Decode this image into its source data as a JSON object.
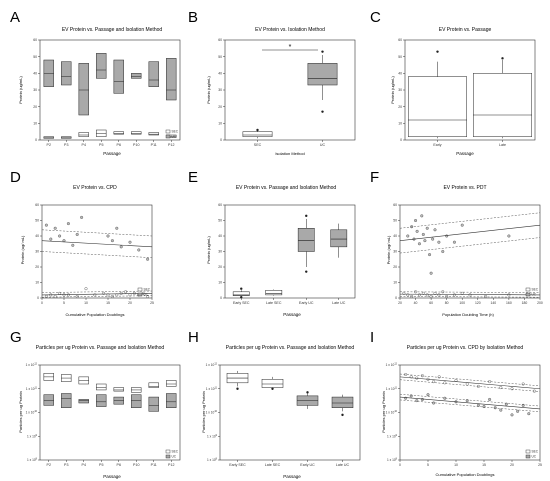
{
  "panels": {
    "A": {
      "letter": "A",
      "title": "EV Protein vs. Passage and Isolation Method",
      "xlabel": "Passage",
      "ylabel": "Protein (ug/mL)"
    },
    "B": {
      "letter": "B",
      "title": "EV Protein vs. Isolation Method",
      "xlabel": "Isolation Method",
      "ylabel": "Protein (ug/mL)",
      "sig": "*"
    },
    "C": {
      "letter": "C",
      "title": "EV Protein vs. Passage",
      "xlabel": "Passage",
      "ylabel": "Protein (ug/mL)"
    },
    "D": {
      "letter": "D",
      "title": "EV Protein vs. CPD",
      "xlabel": "Cumulative Population Doublings",
      "ylabel": "Protein (ug/ mL)"
    },
    "E": {
      "letter": "E",
      "title": "EV Protein vs. Passage and Isolation Method",
      "xlabel": "Passage",
      "ylabel": "Protein (ug/mL)"
    },
    "F": {
      "letter": "F",
      "title": "EV Protein vs. PDT",
      "xlabel": "Population Doubling Time (h)",
      "ylabel": "Protein (ug/ mL)"
    },
    "G": {
      "letter": "G",
      "title": "Particles per ug Protein vs. Passage and Isolation Method",
      "xlabel": "Passage",
      "ylabel": "Particles per ug Protein"
    },
    "H": {
      "letter": "H",
      "title": "Particles per ug Protein vs. Passage and Isolation Method",
      "xlabel": "Passage",
      "ylabel": "Particles per ug Protein"
    },
    "I": {
      "letter": "I",
      "title": "Particles per ug Protein vs. CPD by Isolation Method",
      "xlabel": "Cumulative Population Doublings",
      "ylabel": "Particles per ug Protein"
    }
  },
  "colors": {
    "sec_fill": "#ffffff",
    "uc_fill": "#a9a9a9",
    "stroke": "#222222",
    "axis": "#333333",
    "grid": "#cccccc"
  },
  "chart_data": [
    {
      "panel": "A",
      "type": "bar",
      "categories": [
        "P2",
        "P3",
        "P4",
        "P5",
        "P6",
        "P10",
        "P11",
        "P12"
      ],
      "ylim": [
        0,
        60
      ],
      "yticks": [
        0,
        10,
        20,
        30,
        40,
        50,
        60
      ],
      "legend": [
        "SEC",
        "UC"
      ],
      "legend_position": "bottom-right",
      "series": [
        {
          "name": "SEC",
          "low": [
            1.0,
            1.0,
            2.0,
            2.0,
            3.5,
            3.5,
            3.0,
            1.5
          ],
          "median": [
            1.5,
            1.5,
            3.0,
            4.0,
            4.0,
            4.0,
            3.5,
            2.0
          ],
          "high": [
            2.0,
            2.0,
            4.5,
            6.0,
            5.0,
            5.0,
            4.5,
            3.0
          ]
        },
        {
          "name": "UC",
          "low": [
            32,
            33,
            15,
            37,
            28,
            37,
            32,
            24
          ],
          "median": [
            40,
            38,
            30,
            42,
            35,
            38,
            36,
            30
          ],
          "high": [
            48,
            47,
            46,
            52,
            48,
            40,
            47,
            49
          ]
        }
      ]
    },
    {
      "panel": "B",
      "type": "box",
      "categories": [
        "SEC",
        "UC"
      ],
      "ylim": [
        0,
        60
      ],
      "yticks": [
        0,
        10,
        20,
        30,
        40,
        50,
        60
      ],
      "boxes": [
        {
          "name": "SEC",
          "min": 1,
          "q1": 2,
          "median": 3,
          "q3": 5,
          "max": 6,
          "outliers": [
            6
          ]
        },
        {
          "name": "UC",
          "min": 24,
          "q1": 33,
          "median": 37,
          "q3": 46,
          "max": 51,
          "outliers": [
            53,
            17
          ]
        }
      ]
    },
    {
      "panel": "C",
      "type": "box",
      "categories": [
        "Early",
        "Late"
      ],
      "ylim": [
        0,
        60
      ],
      "yticks": [
        0,
        10,
        20,
        30,
        40,
        50,
        60
      ],
      "boxes": [
        {
          "name": "Early",
          "min": 1,
          "q1": 2,
          "median": 12,
          "q3": 38,
          "max": 47,
          "outliers": [
            53
          ]
        },
        {
          "name": "Late",
          "min": 1,
          "q1": 2,
          "median": 15,
          "q3": 40,
          "max": 48,
          "outliers": [
            49
          ]
        }
      ]
    },
    {
      "panel": "D",
      "type": "scatter",
      "xlim": [
        0,
        25
      ],
      "xticks": [
        0,
        5,
        10,
        15,
        20,
        25
      ],
      "ylim": [
        0,
        60
      ],
      "yticks": [
        0,
        10,
        20,
        30,
        40,
        50,
        60
      ],
      "legend": [
        "SEC",
        "UC"
      ],
      "legend_position": "bottom-right",
      "series": [
        {
          "name": "SEC",
          "x": [
            1,
            2,
            3,
            4,
            5,
            6,
            8,
            10,
            12,
            14,
            15,
            16,
            17,
            18,
            19,
            20,
            21,
            22,
            23,
            24
          ],
          "y": [
            1,
            2,
            1,
            3,
            2,
            2,
            1,
            6,
            2,
            3,
            2,
            1,
            2,
            3,
            4,
            2,
            3,
            2,
            3,
            1
          ]
        },
        {
          "name": "UC",
          "x": [
            1,
            2,
            3,
            4,
            5,
            6,
            7,
            8,
            9,
            15,
            16,
            17,
            18,
            20,
            22,
            24
          ],
          "y": [
            47,
            38,
            45,
            40,
            37,
            48,
            34,
            41,
            52,
            40,
            37,
            45,
            33,
            36,
            31,
            25
          ]
        }
      ],
      "fits": [
        {
          "name": "UC",
          "y0": 37,
          "y1": 33,
          "band": 7
        },
        {
          "name": "SEC",
          "y0": 2,
          "y1": 3,
          "band": 1.5
        }
      ]
    },
    {
      "panel": "E",
      "type": "box",
      "categories": [
        "Early SEC",
        "Late SEC",
        "Early UC",
        "Late UC"
      ],
      "ylim": [
        0,
        60
      ],
      "yticks": [
        0,
        10,
        20,
        30,
        40,
        50,
        60
      ],
      "boxes": [
        {
          "name": "Early SEC",
          "min": 1,
          "q1": 1.5,
          "median": 2,
          "q3": 4,
          "max": 5,
          "outliers": [
            6,
            0.5
          ]
        },
        {
          "name": "Late SEC",
          "min": 1.5,
          "q1": 2,
          "median": 3,
          "q3": 5,
          "max": 5.5,
          "outliers": []
        },
        {
          "name": "Early UC",
          "min": 20,
          "q1": 30,
          "median": 37,
          "q3": 45,
          "max": 51,
          "outliers": [
            53,
            17
          ]
        },
        {
          "name": "Late UC",
          "min": 26,
          "q1": 33,
          "median": 38,
          "q3": 44,
          "max": 48,
          "outliers": []
        }
      ]
    },
    {
      "panel": "F",
      "type": "scatter",
      "xlim": [
        20,
        200
      ],
      "xticks": [
        20,
        40,
        60,
        80,
        100,
        120,
        140,
        160,
        180,
        200
      ],
      "ylim": [
        0,
        60
      ],
      "yticks": [
        0,
        10,
        20,
        30,
        40,
        50,
        60
      ],
      "legend": [
        "SEC",
        "UC"
      ],
      "legend_position": "bottom-right",
      "series": [
        {
          "name": "SEC",
          "x": [
            25,
            30,
            35,
            40,
            45,
            50,
            55,
            60,
            65,
            70,
            75,
            80,
            90,
            100,
            110,
            130,
            160
          ],
          "y": [
            3,
            2,
            1,
            4,
            2,
            3,
            2,
            1,
            3,
            2,
            4,
            1,
            2,
            3,
            2,
            1,
            2
          ]
        },
        {
          "name": "UC",
          "x": [
            30,
            35,
            38,
            40,
            42,
            45,
            48,
            50,
            52,
            55,
            58,
            60,
            62,
            65,
            70,
            75,
            80,
            90,
            100,
            160
          ],
          "y": [
            40,
            46,
            38,
            50,
            43,
            35,
            53,
            41,
            37,
            45,
            28,
            16,
            38,
            44,
            36,
            30,
            40,
            36,
            47,
            40
          ]
        }
      ],
      "fits": [
        {
          "name": "UC",
          "y0": 37,
          "y1": 47,
          "band": 8
        },
        {
          "name": "SEC",
          "y0": 2.5,
          "y1": 2.0,
          "band": 1.5
        }
      ]
    },
    {
      "panel": "G",
      "type": "bar",
      "categories": [
        "P2",
        "P3",
        "P4",
        "P5",
        "P6",
        "P10",
        "P11",
        "P12"
      ],
      "scale": "log",
      "ylim_exp": [
        8,
        12
      ],
      "yticks": [
        "1 x 10^8",
        "1 x 10^9",
        "1 x 10^10",
        "1 x 10^11",
        "1 x 10^12"
      ],
      "legend": [
        "SEC",
        "UC"
      ],
      "legend_position": "bottom-right",
      "series": [
        {
          "name": "SEC",
          "low_exp": [
            11.35,
            11.3,
            11.2,
            10.95,
            10.9,
            10.85,
            11.05,
            11.1
          ],
          "median_exp": [
            11.5,
            11.45,
            11.35,
            11.05,
            10.95,
            10.95,
            11.1,
            11.2
          ],
          "high_exp": [
            11.65,
            11.6,
            11.5,
            11.2,
            11.05,
            11.05,
            11.25,
            11.35
          ]
        },
        {
          "name": "UC",
          "low_exp": [
            10.3,
            10.2,
            10.4,
            10.25,
            10.35,
            10.2,
            10.05,
            10.2
          ],
          "median_exp": [
            10.5,
            10.6,
            10.5,
            10.45,
            10.5,
            10.5,
            10.3,
            10.45
          ],
          "high_exp": [
            10.75,
            10.8,
            10.55,
            10.75,
            10.65,
            10.75,
            10.65,
            10.8
          ]
        }
      ]
    },
    {
      "panel": "H",
      "type": "box",
      "categories": [
        "Early SEC",
        "Late SEC",
        "Early UC",
        "Late UC"
      ],
      "scale": "log",
      "ylim_exp": [
        8,
        12
      ],
      "yticks": [
        "1 x 10^8",
        "1 x 10^9",
        "1 x 10^10",
        "1 x 10^11",
        "1 x 10^12"
      ],
      "boxes": [
        {
          "name": "Early SEC",
          "min": 11.1,
          "q1": 11.25,
          "median": 11.45,
          "q3": 11.65,
          "max": 11.75,
          "outliers": [
            11.0
          ]
        },
        {
          "name": "Late SEC",
          "min": 10.95,
          "q1": 11.05,
          "median": 11.2,
          "q3": 11.4,
          "max": 11.5,
          "outliers": [
            11.0
          ]
        },
        {
          "name": "Early UC",
          "min": 10.15,
          "q1": 10.3,
          "median": 10.5,
          "q3": 10.7,
          "max": 10.8,
          "outliers": [
            10.85
          ]
        },
        {
          "name": "Late UC",
          "min": 10.05,
          "q1": 10.2,
          "median": 10.4,
          "q3": 10.65,
          "max": 10.75,
          "outliers": [
            9.9
          ]
        }
      ]
    },
    {
      "panel": "I",
      "type": "scatter",
      "xlim": [
        0,
        25
      ],
      "xticks": [
        0,
        5,
        10,
        15,
        20,
        25
      ],
      "scale": "log",
      "ylim_exp": [
        8,
        12
      ],
      "yticks": [
        "1 x 10^8",
        "1 x 10^9",
        "1 x 10^10",
        "1 x 10^11",
        "1 x 10^12"
      ],
      "legend": [
        "SEC",
        "UC"
      ],
      "legend_position": "bottom-right",
      "series": [
        {
          "name": "SEC",
          "x": [
            1,
            2,
            3,
            4,
            5,
            6,
            7,
            8,
            10,
            12,
            14,
            16,
            18,
            20,
            22,
            24
          ],
          "y_exp": [
            11.6,
            11.5,
            11.45,
            11.55,
            11.4,
            11.3,
            11.5,
            11.25,
            11.35,
            11.2,
            11.1,
            11.3,
            11.05,
            11.0,
            11.2,
            10.9
          ]
        },
        {
          "name": "UC",
          "x": [
            1,
            2,
            3,
            4,
            5,
            6,
            8,
            10,
            12,
            14,
            15,
            16,
            17,
            18,
            19,
            20,
            21,
            22,
            23
          ],
          "y_exp": [
            10.6,
            10.7,
            10.5,
            10.55,
            10.75,
            10.4,
            10.6,
            10.45,
            10.5,
            10.3,
            10.25,
            10.55,
            10.2,
            10.1,
            10.35,
            9.9,
            10.05,
            10.3,
            9.95
          ]
        }
      ],
      "fits": [
        {
          "name": "SEC",
          "y0": 11.5,
          "y1": 11.0,
          "band": 0.12
        },
        {
          "name": "UC",
          "y0": 10.65,
          "y1": 10.15,
          "band": 0.12
        }
      ]
    }
  ]
}
